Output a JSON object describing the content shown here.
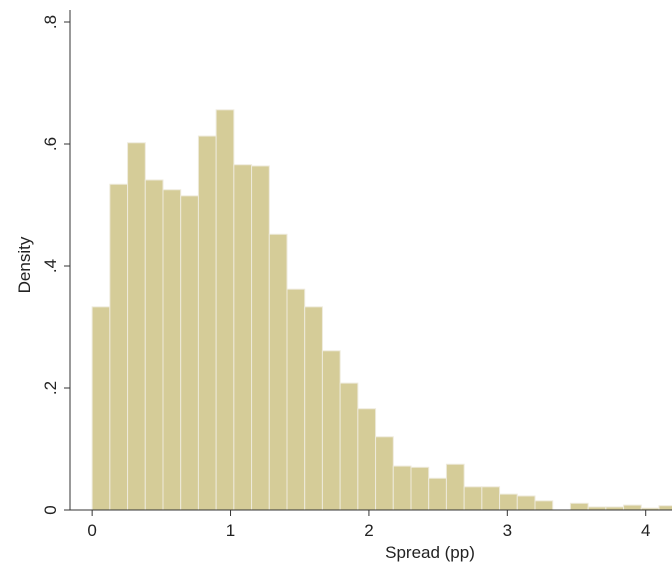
{
  "chart_data": {
    "type": "histogram",
    "x_label": "Spread (pp)",
    "y_label": "Density",
    "bins": [
      0,
      0.128,
      0.256,
      0.384,
      0.512,
      0.64,
      0.768,
      0.896,
      1.024,
      1.152,
      1.28,
      1.408,
      1.536,
      1.664,
      1.792,
      1.92,
      2.048,
      2.176,
      2.304,
      2.432,
      2.56,
      2.688,
      2.816,
      2.944,
      3.072,
      3.2,
      3.328,
      3.456,
      3.584,
      3.712,
      3.84,
      3.968,
      4.096,
      4.224
    ],
    "values": [
      0.333,
      0.534,
      0.602,
      0.541,
      0.525,
      0.515,
      0.613,
      0.656,
      0.566,
      0.564,
      0.452,
      0.362,
      0.333,
      0.261,
      0.208,
      0.166,
      0.12,
      0.072,
      0.07,
      0.052,
      0.075,
      0.038,
      0.038,
      0.026,
      0.023,
      0.015,
      0,
      0.011,
      0.005,
      0.005,
      0.008,
      0.003,
      0.007
    ],
    "color": "#d5cc98",
    "xlim": [
      -0.16,
      4.19
    ],
    "ylim": [
      0,
      0.8
    ],
    "xticks": [
      0,
      1,
      2,
      3,
      4
    ],
    "yticks": [
      0,
      {
        "value": 0.2,
        "label": ".2"
      },
      {
        "value": 0.4,
        "label": ".4"
      },
      {
        "value": 0.6,
        "label": ".6"
      },
      {
        "value": 0.8,
        "label": ".8"
      }
    ]
  }
}
